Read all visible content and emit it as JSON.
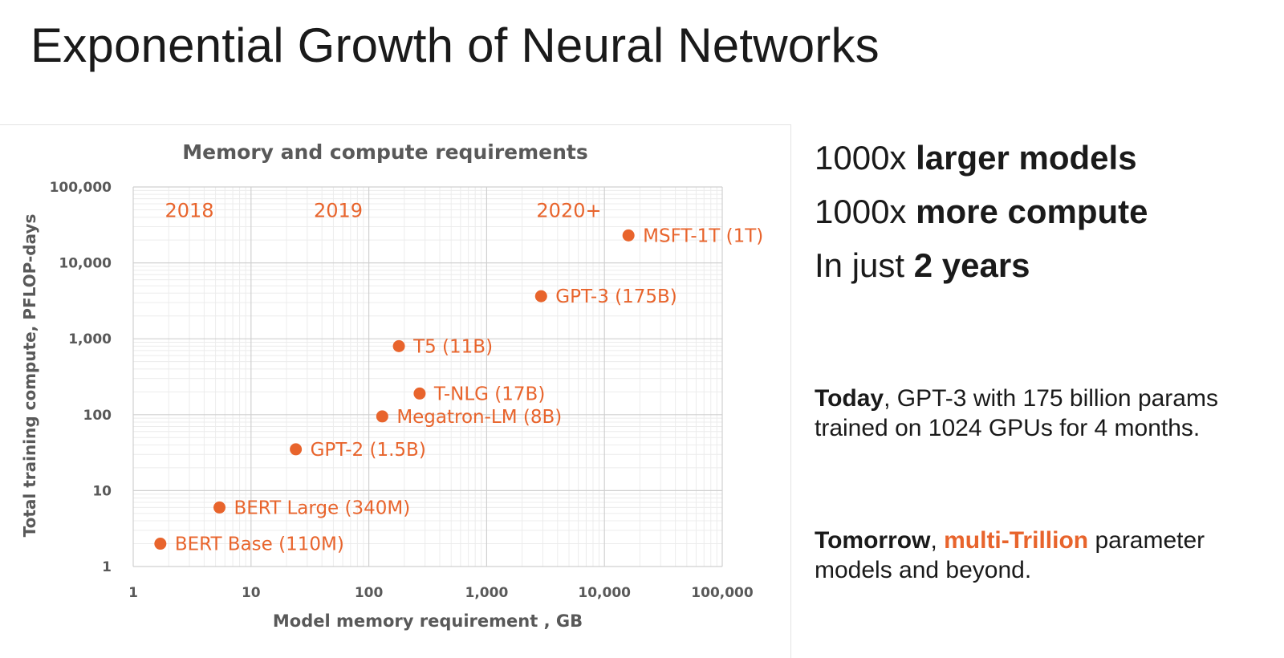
{
  "slide": {
    "title": "Exponential Growth of Neural Networks"
  },
  "colors": {
    "accent": "#e8642c",
    "axis_text": "#595959",
    "grid_major": "#d0d0d0",
    "grid_minor": "#ececec"
  },
  "chart_data": {
    "type": "scatter",
    "title": "Memory and compute requirements",
    "xlabel": "Model memory requirement , GB",
    "ylabel": "Total training compute, PFLOP-days",
    "xscale": "log",
    "yscale": "log",
    "xlim": [
      1,
      100000
    ],
    "ylim": [
      1,
      100000
    ],
    "grid": true,
    "x_ticks": [
      {
        "value": 1,
        "label": "1"
      },
      {
        "value": 10,
        "label": "10"
      },
      {
        "value": 100,
        "label": "100"
      },
      {
        "value": 1000,
        "label": "1,000"
      },
      {
        "value": 10000,
        "label": "10,000"
      },
      {
        "value": 100000,
        "label": "100,000"
      }
    ],
    "y_ticks": [
      {
        "value": 1,
        "label": "1"
      },
      {
        "value": 10,
        "label": "10"
      },
      {
        "value": 100,
        "label": "100"
      },
      {
        "value": 1000,
        "label": "1,000"
      },
      {
        "value": 10000,
        "label": "10,000"
      },
      {
        "value": 100000,
        "label": "100,000"
      }
    ],
    "era_labels": [
      {
        "text": "2018",
        "x": 3,
        "y": 50000
      },
      {
        "text": "2019",
        "x": 55,
        "y": 50000
      },
      {
        "text": "2020+",
        "x": 5000,
        "y": 50000
      }
    ],
    "points": [
      {
        "label": "BERT Base (110M)",
        "x": 1.7,
        "y": 2
      },
      {
        "label": "BERT Large (340M)",
        "x": 5.4,
        "y": 6
      },
      {
        "label": "GPT-2 (1.5B)",
        "x": 24,
        "y": 35
      },
      {
        "label": "Megatron-LM (8B)",
        "x": 130,
        "y": 95
      },
      {
        "label": "T-NLG (17B)",
        "x": 270,
        "y": 190
      },
      {
        "label": "T5 (11B)",
        "x": 180,
        "y": 800
      },
      {
        "label": "GPT-3 (175B)",
        "x": 2900,
        "y": 3640
      },
      {
        "label": "MSFT-1T (1T)",
        "x": 16000,
        "y": 23000
      }
    ]
  },
  "right_panel": {
    "headlines": [
      {
        "prefix": "1000x ",
        "bold": "larger models"
      },
      {
        "prefix": "1000x ",
        "bold": "more compute"
      },
      {
        "prefix": "In just ",
        "bold": "2 years"
      }
    ],
    "today": {
      "bold": "Today",
      "text": ", GPT-3 with 175 billion params trained on 1024 GPUs for 4 months."
    },
    "tomorrow": {
      "bold": "Tomorrow",
      "sep": ", ",
      "highlight": "multi-Trillion",
      "text": " parameter models and beyond."
    }
  }
}
